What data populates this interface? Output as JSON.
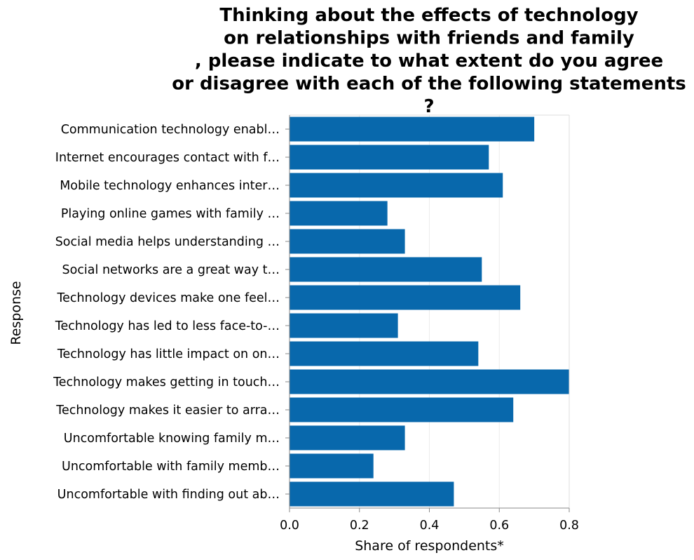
{
  "chart_data": {
    "type": "bar",
    "orientation": "horizontal",
    "title_lines": [
      "Thinking about the effects of technology",
      "on relationships with friends and family",
      ", please indicate to what extent do you agree",
      "or disagree with each of the following statements",
      "?"
    ],
    "xlabel": "Share of respondents*",
    "ylabel": "Response",
    "xlim": [
      0,
      0.8
    ],
    "xticks": [
      0.0,
      0.2,
      0.4,
      0.6,
      0.8
    ],
    "xtick_labels": [
      "0.0",
      "0.2",
      "0.4",
      "0.6",
      "0.8"
    ],
    "grid": true,
    "bar_color": "#0868ac",
    "categories": [
      "Communication technology enabl…",
      "Internet encourages contact with f…",
      "Mobile technology enhances inter…",
      "Playing online games with family …",
      "Social media helps understanding …",
      "Social networks are a great way t…",
      "Technology devices make one feel…",
      "Technology has led to less face-to-…",
      "Technology has little impact on on…",
      "Technology makes getting in touch…",
      "Technology makes it easier to arra…",
      "Uncomfortable knowing family m…",
      "Uncomfortable with family memb…",
      "Uncomfortable with finding out ab…"
    ],
    "values": [
      0.7,
      0.57,
      0.61,
      0.28,
      0.33,
      0.55,
      0.66,
      0.31,
      0.54,
      0.8,
      0.64,
      0.33,
      0.24,
      0.47
    ]
  }
}
